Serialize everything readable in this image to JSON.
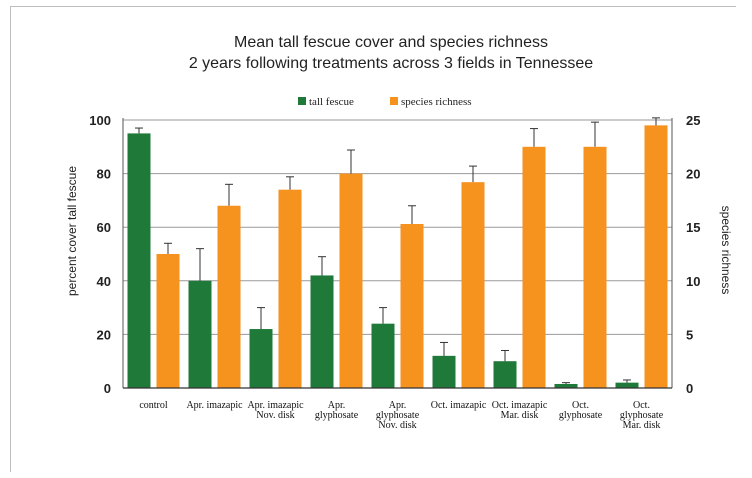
{
  "chart_data": {
    "type": "bar",
    "title": "Mean tall fescue cover and species richness",
    "subtitle": "2 years following treatments across 3 fields in Tennessee",
    "ylabel": "percent cover tall fescue",
    "y2label": "species richness",
    "ylim": [
      0,
      100
    ],
    "y2lim": [
      0,
      25
    ],
    "yticks": [
      "0",
      "20",
      "40",
      "60",
      "80",
      "100"
    ],
    "y2ticks": [
      "0",
      "5",
      "10",
      "15",
      "20",
      "25"
    ],
    "grid": true,
    "legend_position": "top",
    "categories": [
      [
        "control"
      ],
      [
        "Apr. imazapic"
      ],
      [
        "Apr. imazapic",
        "Nov. disk"
      ],
      [
        "Apr.",
        "glyphosate"
      ],
      [
        "Apr.",
        "glyphosate",
        "Nov. disk"
      ],
      [
        "Oct. imazapic"
      ],
      [
        "Oct. imazapic",
        "Mar. disk"
      ],
      [
        "Oct.",
        "glyphosate"
      ],
      [
        "Oct.",
        "glyphosate",
        "Mar. disk"
      ]
    ],
    "series": [
      {
        "name": "tall fescue",
        "axis": "left",
        "color": "#1f7a3a",
        "values": [
          95,
          40,
          22,
          42,
          24,
          12,
          10,
          1.5,
          2
        ],
        "error": [
          2,
          12,
          8,
          7,
          6,
          5,
          4,
          0.5,
          1
        ]
      },
      {
        "name": "species richness",
        "axis": "right",
        "color": "#f6921e",
        "values": [
          12.5,
          17,
          18.5,
          20,
          15.3,
          19.2,
          22.5,
          22.5,
          24.5
        ],
        "error": [
          1,
          2,
          1.2,
          2.2,
          1.7,
          1.5,
          1.7,
          2.3,
          0.7
        ]
      }
    ]
  }
}
